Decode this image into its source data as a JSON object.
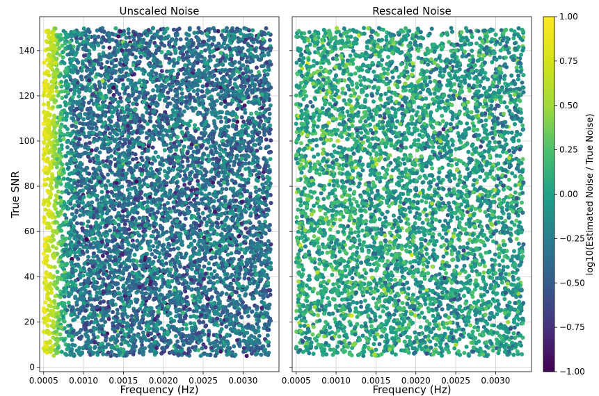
{
  "chart_data": {
    "type": "scatter",
    "shared": {
      "xlabel": "Frequency (Hz)",
      "ylabel": "True SNR",
      "xlim": [
        0.00045,
        0.00345
      ],
      "ylim": [
        -2,
        155
      ],
      "x_ticks": [
        0.0005,
        0.001,
        0.0015,
        0.002,
        0.0025,
        0.003
      ],
      "x_tick_labels": [
        "0.0005",
        "0.0010",
        "0.0015",
        "0.0020",
        "0.0025",
        "0.0030"
      ],
      "y_ticks": [
        0,
        20,
        40,
        60,
        80,
        100,
        120,
        140
      ],
      "y_tick_labels": [
        "0",
        "20",
        "40",
        "60",
        "80",
        "100",
        "120",
        "140"
      ],
      "grid": true,
      "point_domain": {
        "x": [
          0.0005,
          0.00335
        ],
        "y": [
          5,
          150
        ]
      }
    },
    "panels": [
      {
        "title": "Unscaled Noise",
        "point_count": 7000,
        "color_model": "yellow-green band at low frequency (log ratio up to ~1.0), otherwise mostly -0.7 to 0.0",
        "color_bias": {
          "low_freq_peak": 0.95,
          "base_mean": -0.35,
          "spread": 0.22
        }
      },
      {
        "title": "Rescaled Noise",
        "point_count": 7000,
        "color_model": "mostly teal/green, log ratio centered near 0.0",
        "color_bias": {
          "low_freq_peak": 0.0,
          "base_mean": -0.05,
          "spread": 0.22
        }
      }
    ],
    "colorbar": {
      "label": "log10(Estimated Noise / True Noise)",
      "colormap": "viridis",
      "range": [
        -1.0,
        1.0
      ],
      "ticks": [
        -1.0,
        -0.75,
        -0.5,
        -0.25,
        0.0,
        0.25,
        0.5,
        0.75,
        1.0
      ],
      "tick_labels": [
        "−1.00",
        "−0.75",
        "−0.50",
        "−0.25",
        "0.00",
        "0.25",
        "0.50",
        "0.75",
        "1.00"
      ]
    }
  }
}
